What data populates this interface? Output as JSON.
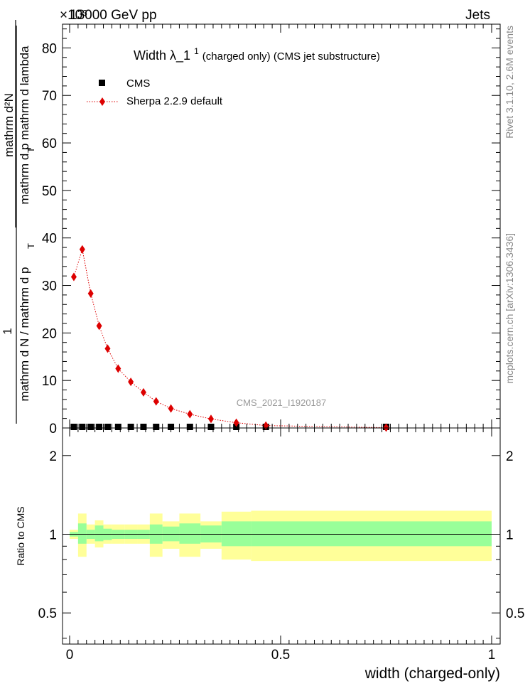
{
  "header": {
    "left": "13000 GeV pp",
    "right": "Jets",
    "exponent_marker": "×10³"
  },
  "side_text": {
    "rivet": "Rivet 3.1.10,  2.6M events",
    "mcplots": "mcplots.cern.ch [arXiv:1306.3436]"
  },
  "plot_title": {
    "main": "Width λ_1",
    "sup": "1",
    "sub": " (charged only) (CMS jet substructure)"
  },
  "watermark": "CMS_2021_I1920187",
  "legend": [
    {
      "label": "CMS"
    },
    {
      "label": "Sherpa 2.2.9 default"
    }
  ],
  "ylabel_main": {
    "numerator": "mathrm d²N",
    "denominator_top": "mathrm d p  mathrm d lambda",
    "sub_T": "T",
    "one": "1",
    "denominator_bottom": "mathrm d N / mathrm d p",
    "sub_T2": "T"
  },
  "ylabel_ratio": "Ratio to CMS",
  "xlabel": "width (charged-only)",
  "colors": {
    "cms": "#000000",
    "sherpa": "#dd0000",
    "band_inner": "#99ff99",
    "band_outer": "#ffff99"
  },
  "chart_data": [
    {
      "type": "scatter",
      "title": "Width λ_1¹ (charged only) (CMS jet substructure)",
      "xlabel": "",
      "ylabel": "1 / (mathrm d N / mathrm d p_T) · mathrm d²N / (mathrm d p_T mathrm d lambda)",
      "y_multiplier": "×10³",
      "xlim": [
        0,
        1
      ],
      "ylim": [
        0,
        85
      ],
      "yticks": [
        0,
        10,
        20,
        30,
        40,
        50,
        60,
        70,
        80
      ],
      "series": [
        {
          "name": "CMS",
          "marker": "square",
          "x": [
            0.01,
            0.03,
            0.05,
            0.07,
            0.09,
            0.115,
            0.145,
            0.175,
            0.205,
            0.24,
            0.285,
            0.335,
            0.395,
            0.465,
            0.75
          ],
          "y": [
            0.0,
            0.0,
            0.0,
            0.0,
            0.0,
            0.0,
            0.0,
            0.0,
            0.0,
            0.0,
            0.0,
            0.0,
            0.0,
            0.0,
            0.0
          ]
        },
        {
          "name": "Sherpa 2.2.9 default",
          "marker": "diamond",
          "line": "dotted",
          "x": [
            0.01,
            0.03,
            0.05,
            0.07,
            0.09,
            0.115,
            0.145,
            0.175,
            0.205,
            0.24,
            0.285,
            0.335,
            0.395,
            0.465,
            0.75
          ],
          "y": [
            31.8,
            37.6,
            28.3,
            21.5,
            16.7,
            12.5,
            9.7,
            7.5,
            5.6,
            4.1,
            2.9,
            1.9,
            1.1,
            0.5,
            0.07
          ]
        }
      ]
    },
    {
      "type": "area",
      "title": "",
      "xlabel": "width (charged-only)",
      "ylabel": "Ratio to CMS",
      "xlim": [
        0,
        1
      ],
      "ylim": [
        0.38,
        2.55
      ],
      "yticks": [
        0.5,
        1,
        2
      ],
      "xticks": [
        0,
        0.5,
        1
      ],
      "bin_edges": [
        0,
        0.02,
        0.04,
        0.06,
        0.08,
        0.1,
        0.13,
        0.16,
        0.19,
        0.22,
        0.26,
        0.31,
        0.36,
        0.43,
        0.5,
        1.0
      ],
      "inner_band": {
        "name": "stat",
        "low": [
          0.98,
          0.92,
          0.96,
          0.94,
          0.95,
          0.96,
          0.96,
          0.96,
          0.92,
          0.94,
          0.92,
          0.93,
          0.9,
          0.9,
          0.9
        ],
        "high": [
          1.02,
          1.1,
          1.04,
          1.08,
          1.05,
          1.04,
          1.04,
          1.04,
          1.09,
          1.07,
          1.1,
          1.08,
          1.12,
          1.12,
          1.12
        ]
      },
      "outer_band": {
        "name": "total",
        "low": [
          0.96,
          0.82,
          0.92,
          0.89,
          0.92,
          0.92,
          0.92,
          0.92,
          0.82,
          0.88,
          0.82,
          0.88,
          0.8,
          0.79,
          0.79
        ],
        "high": [
          1.04,
          1.2,
          1.09,
          1.13,
          1.09,
          1.09,
          1.09,
          1.09,
          1.2,
          1.12,
          1.2,
          1.12,
          1.22,
          1.23,
          1.23
        ]
      },
      "reference_line": 1
    }
  ]
}
